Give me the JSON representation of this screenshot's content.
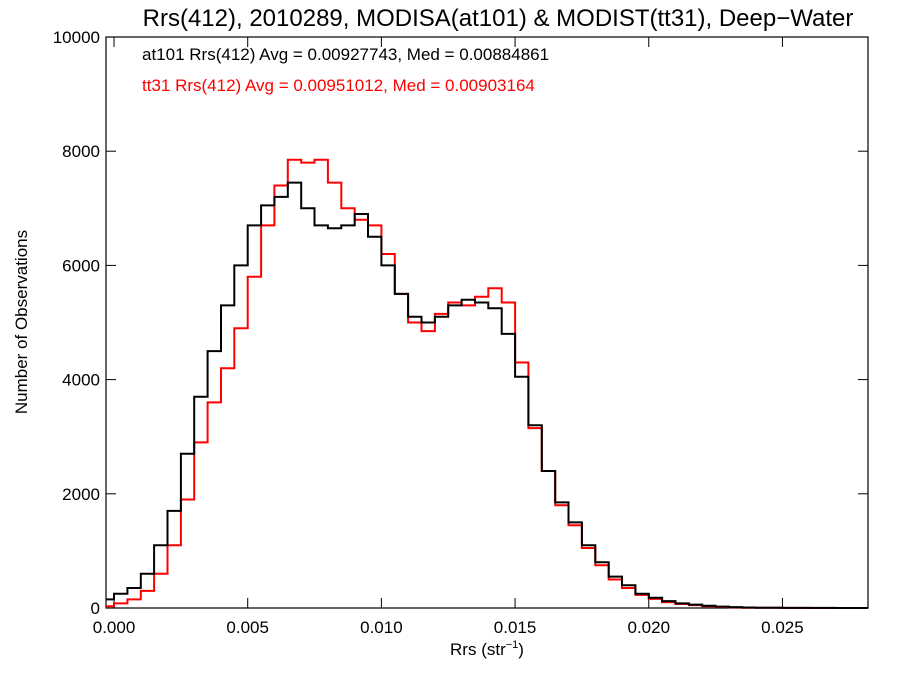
{
  "chart_data": {
    "type": "line",
    "title": "Rrs(412), 2010289, MODISA(at101) & MODIST(tt31), Deep−Water",
    "xlabel": "Rrs (str",
    "xlabel_sup": "−1",
    "xlabel_end": ")",
    "ylabel": "Number of Observations",
    "xlim": [
      -0.0003,
      0.0282
    ],
    "ylim": [
      0,
      10000
    ],
    "x_ticks": [
      0.0,
      0.005,
      0.01,
      0.015,
      0.02,
      0.025
    ],
    "x_tick_labels": [
      "0.000",
      "0.005",
      "0.010",
      "0.015",
      "0.020",
      "0.025"
    ],
    "y_ticks": [
      0,
      2000,
      4000,
      6000,
      8000,
      10000
    ],
    "y_tick_labels": [
      "0",
      "2000",
      "4000",
      "6000",
      "8000",
      "10000"
    ],
    "grid": false,
    "step": true,
    "annotations": [
      {
        "text": "at101 Rrs(412) Avg = 0.00927743, Med = 0.00884861",
        "color": "#000000"
      },
      {
        "text": "tt31 Rrs(412) Avg = 0.00951012, Med = 0.00903164",
        "color": "#ff0000"
      }
    ],
    "series": [
      {
        "color": "#000000",
        "x": [
          -0.0003,
          0.0,
          0.0005,
          0.001,
          0.0015,
          0.002,
          0.0025,
          0.003,
          0.0035,
          0.004,
          0.0045,
          0.005,
          0.0055,
          0.006,
          0.0065,
          0.007,
          0.0075,
          0.008,
          0.0085,
          0.009,
          0.0095,
          0.01,
          0.0105,
          0.011,
          0.0115,
          0.012,
          0.0125,
          0.013,
          0.0135,
          0.014,
          0.0145,
          0.015,
          0.0155,
          0.016,
          0.0165,
          0.017,
          0.0175,
          0.018,
          0.0185,
          0.019,
          0.0195,
          0.02,
          0.0205,
          0.021,
          0.0215,
          0.022,
          0.0225,
          0.023,
          0.0235,
          0.024,
          0.025,
          0.026,
          0.027,
          0.0282
        ],
        "y": [
          150,
          250,
          350,
          600,
          1100,
          1700,
          2700,
          3700,
          4500,
          5300,
          6000,
          6700,
          7050,
          7200,
          7450,
          7000,
          6700,
          6650,
          6700,
          6900,
          6500,
          6000,
          5500,
          5100,
          5000,
          5100,
          5300,
          5400,
          5350,
          5250,
          4800,
          4050,
          3200,
          2400,
          1850,
          1500,
          1100,
          800,
          550,
          400,
          250,
          180,
          120,
          80,
          60,
          40,
          25,
          15,
          8,
          5,
          2,
          1,
          0,
          0
        ]
      },
      {
        "color": "#ff0000",
        "x": [
          -0.0003,
          0.0,
          0.0005,
          0.001,
          0.0015,
          0.002,
          0.0025,
          0.003,
          0.0035,
          0.004,
          0.0045,
          0.005,
          0.0055,
          0.006,
          0.0065,
          0.007,
          0.0075,
          0.008,
          0.0085,
          0.009,
          0.0095,
          0.01,
          0.0105,
          0.011,
          0.0115,
          0.012,
          0.0125,
          0.013,
          0.0135,
          0.014,
          0.0145,
          0.015,
          0.0155,
          0.016,
          0.0165,
          0.017,
          0.0175,
          0.018,
          0.0185,
          0.019,
          0.0195,
          0.02,
          0.0205,
          0.021,
          0.0215,
          0.022,
          0.0225,
          0.023,
          0.0235,
          0.024,
          0.025,
          0.026,
          0.027,
          0.0282
        ],
        "y": [
          30,
          80,
          150,
          300,
          600,
          1100,
          1900,
          2900,
          3600,
          4200,
          4900,
          5800,
          6700,
          7400,
          7850,
          7800,
          7850,
          7450,
          7000,
          6800,
          6700,
          6200,
          5500,
          5000,
          4850,
          5150,
          5350,
          5300,
          5450,
          5600,
          5350,
          4300,
          3150,
          2400,
          1800,
          1450,
          1050,
          750,
          500,
          350,
          230,
          160,
          100,
          70,
          50,
          30,
          18,
          10,
          6,
          3,
          1,
          0,
          0,
          0
        ]
      }
    ]
  }
}
